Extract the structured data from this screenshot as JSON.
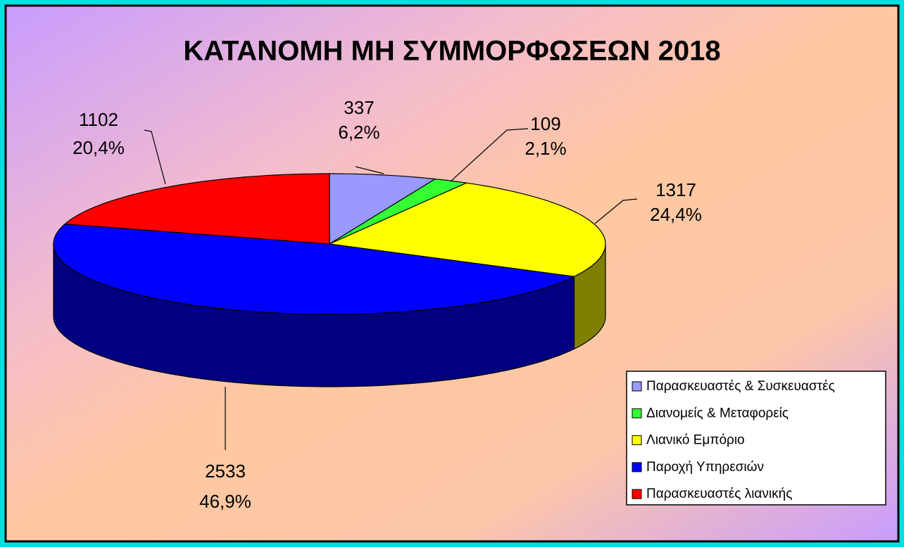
{
  "chart_data": {
    "type": "pie3d",
    "title": "ΚΑΤΑΝΟΜΗ ΜΗ ΣΥΜΜΟΡΦΩΣΕΩΝ 2018",
    "categories": [
      "Παρασκευαστές & Συσκευαστές",
      "Διανομείς & Μεταφορείς",
      "Λιανικό Εμπόριο",
      "Παροχή Υπηρεσιών",
      "Παρασκευαστές λιανικής"
    ],
    "values": [
      337,
      109,
      1317,
      2533,
      1102
    ],
    "percent_labels": [
      "6,2%",
      "2,1%",
      "24,4%",
      "46,9%",
      "20,4%"
    ],
    "colors": [
      "#9999ff",
      "#33ff33",
      "#ffff00",
      "#0000ff",
      "#ff0000"
    ],
    "legend": "bottom-right"
  }
}
